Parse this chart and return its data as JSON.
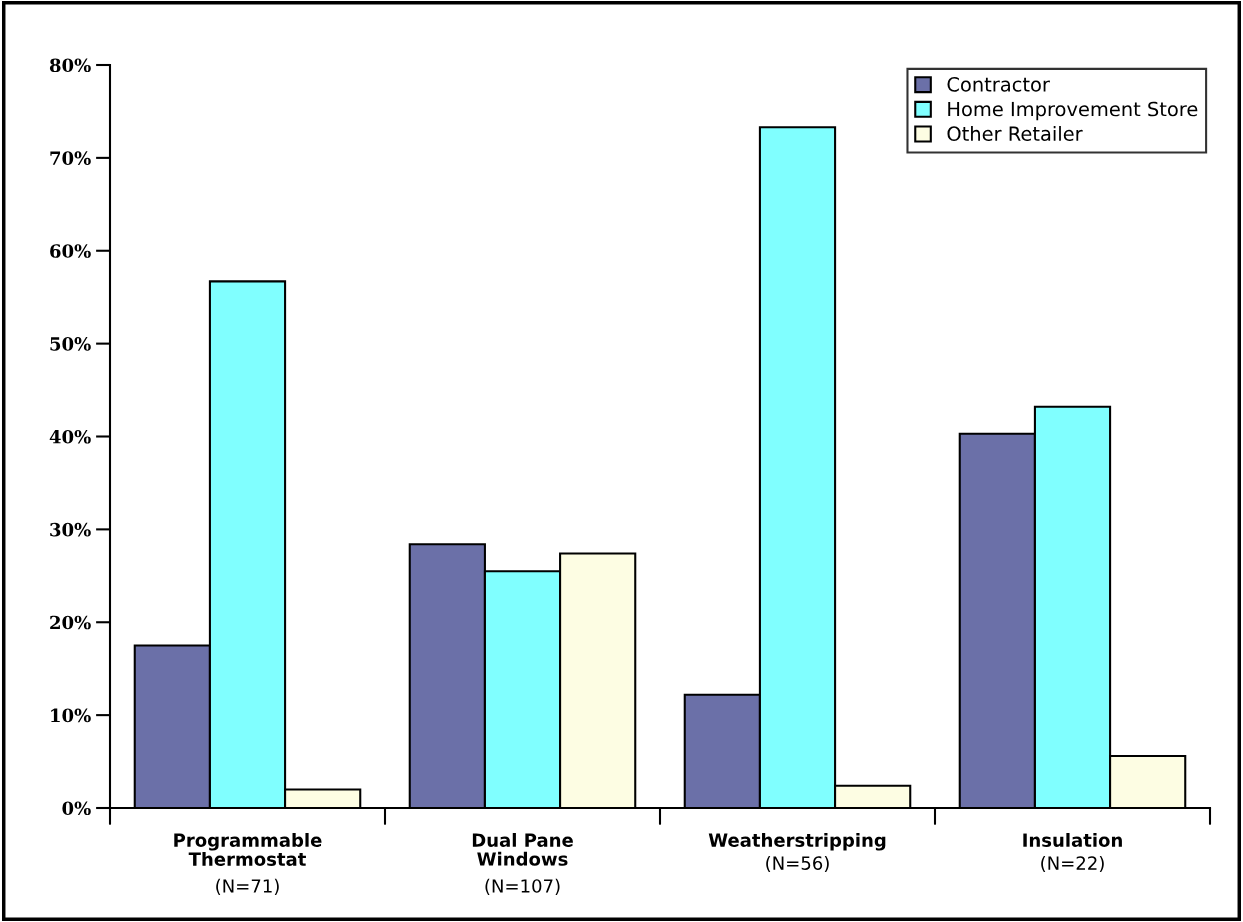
{
  "chart_data": {
    "type": "bar",
    "categories": [
      "Programmable\nThermostat\n(N=71)",
      "Dual Pane\nWindows\n(N=107)",
      "Weatherstripping\n(N=56)",
      "Insulation\n(N=22)"
    ],
    "series": [
      {
        "name": "Contractor",
        "color": "#6b70a8",
        "values": [
          17.5,
          28.4,
          12.2,
          40.3
        ]
      },
      {
        "name": "Home Improvement Store",
        "color": "#80ffff",
        "values": [
          56.7,
          25.5,
          73.3,
          43.2
        ]
      },
      {
        "name": "Other Retailer",
        "color": "#fdfde3",
        "values": [
          2.0,
          27.4,
          2.4,
          5.6
        ]
      }
    ],
    "ylim": [
      0,
      80
    ],
    "yticks": [
      {
        "value": 0,
        "label": "0%"
      },
      {
        "value": 10,
        "label": "10%"
      },
      {
        "value": 20,
        "label": "20%"
      },
      {
        "value": 30,
        "label": "30%"
      },
      {
        "value": 40,
        "label": "40%"
      },
      {
        "value": 50,
        "label": "50%"
      },
      {
        "value": 60,
        "label": "60%"
      },
      {
        "value": 70,
        "label": "70%"
      },
      {
        "value": 80,
        "label": "80%"
      }
    ],
    "grid": false,
    "legend": "top right"
  }
}
